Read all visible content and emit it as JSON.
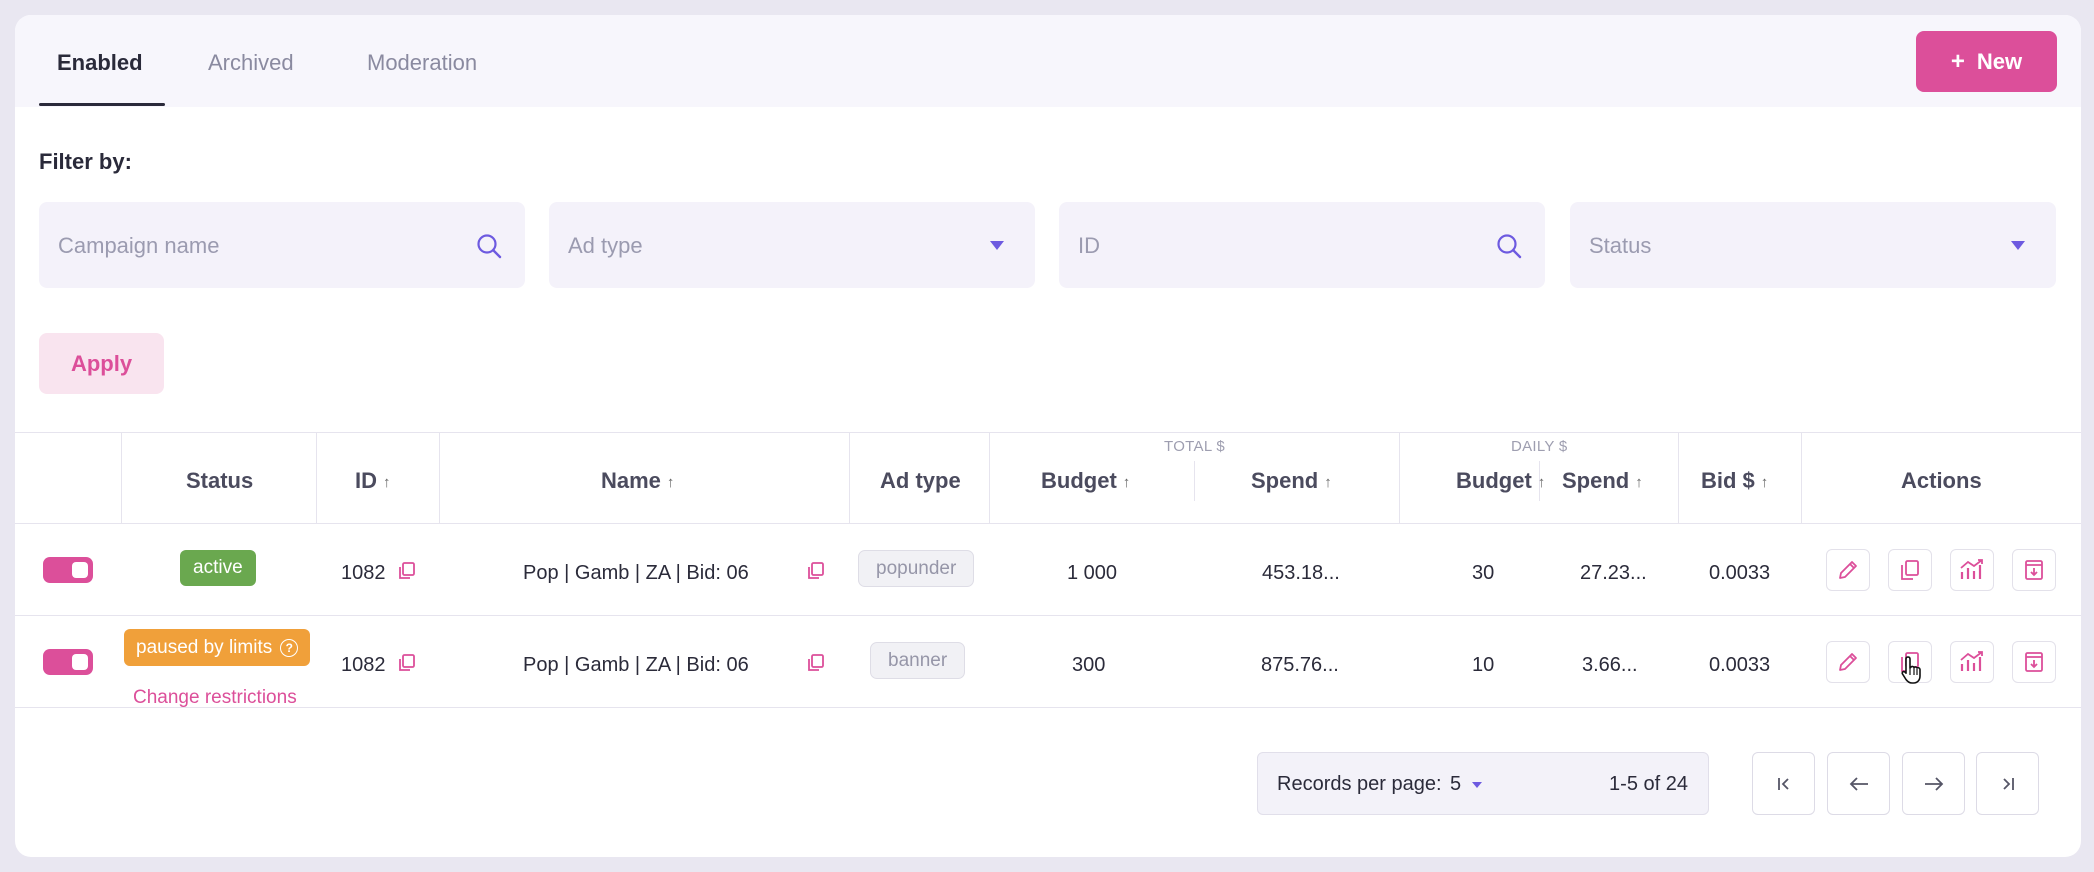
{
  "tabs": [
    {
      "label": "Enabled",
      "active": true
    },
    {
      "label": "Archived",
      "active": false
    },
    {
      "label": "Moderation",
      "active": false
    }
  ],
  "new_button": {
    "icon": "plus-icon",
    "label": "New"
  },
  "filter": {
    "label": "Filter by:",
    "campaign_name_placeholder": "Campaign name",
    "ad_type_placeholder": "Ad type",
    "id_placeholder": "ID",
    "status_placeholder": "Status",
    "apply_label": "Apply"
  },
  "table": {
    "group_total": "TOTAL $",
    "group_daily": "DAILY $",
    "headers": {
      "status": "Status",
      "id": "ID",
      "name": "Name",
      "ad_type": "Ad type",
      "total_budget": "Budget",
      "total_spend": "Spend",
      "daily_budget": "Budget",
      "daily_spend": "Spend",
      "bid": "Bid $",
      "actions": "Actions"
    },
    "rows": [
      {
        "enabled": true,
        "status": "active",
        "status_link": "",
        "id": "1082",
        "name": "Pop | Gamb | ZA | Bid: 06",
        "ad_type": "popunder",
        "total_budget": "1 000",
        "total_spend": "453.18...",
        "daily_budget": "30",
        "daily_spend": "27.23...",
        "bid": "0.0033"
      },
      {
        "enabled": true,
        "status": "paused by limits",
        "status_link": "Change restrictions",
        "id": "1082",
        "name": "Pop | Gamb | ZA | Bid: 06",
        "ad_type": "banner",
        "total_budget": "300",
        "total_spend": "875.76...",
        "daily_budget": "10",
        "daily_spend": "3.66...",
        "bid": "0.0033"
      }
    ]
  },
  "pagination": {
    "records_label": "Records per page:",
    "per_page": "5",
    "range": "1-5 of 24"
  },
  "colors": {
    "accent": "#dc4f9a",
    "active_badge": "#6aa84f",
    "paused_badge": "#f0a03a",
    "caret": "#6d5ae0"
  }
}
